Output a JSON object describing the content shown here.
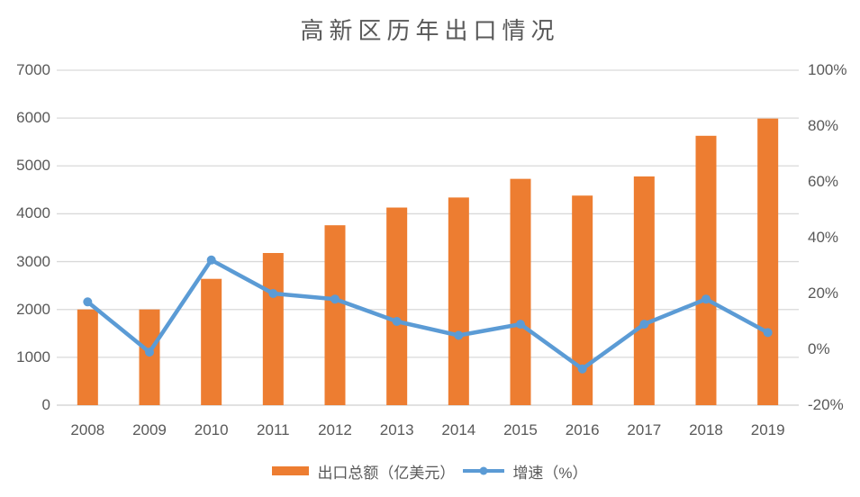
{
  "chart_data": {
    "type": "combo",
    "title": "高新区历年出口情况",
    "categories": [
      "2008",
      "2009",
      "2010",
      "2011",
      "2012",
      "2013",
      "2014",
      "2015",
      "2016",
      "2017",
      "2018",
      "2019"
    ],
    "series": [
      {
        "name": "出口总额（亿美元）",
        "type": "bar",
        "axis": "left",
        "color": "#ED7D31",
        "values": [
          2000,
          2000,
          2640,
          3180,
          3760,
          4130,
          4340,
          4730,
          4380,
          4780,
          5630,
          5990
        ]
      },
      {
        "name": "增速（%）",
        "type": "line",
        "axis": "right",
        "color": "#5B9BD5",
        "values": [
          17,
          -1,
          32,
          20,
          18,
          10,
          5,
          9,
          -7,
          9,
          18,
          6
        ]
      }
    ],
    "left_axis": {
      "min": 0,
      "max": 7000,
      "step": 1000,
      "tick_labels": [
        "0",
        "1000",
        "2000",
        "3000",
        "4000",
        "5000",
        "6000",
        "7000"
      ]
    },
    "right_axis": {
      "min": -20,
      "max": 100,
      "step": 20,
      "tick_labels": [
        "-20%",
        "0%",
        "20%",
        "40%",
        "60%",
        "80%",
        "100%"
      ]
    },
    "grid": true,
    "legend_position": "bottom"
  },
  "colors": {
    "bar": "#ED7D31",
    "line": "#5B9BD5",
    "text": "#595959",
    "gridline": "#D9D9D9",
    "background": "#FFFFFF"
  }
}
